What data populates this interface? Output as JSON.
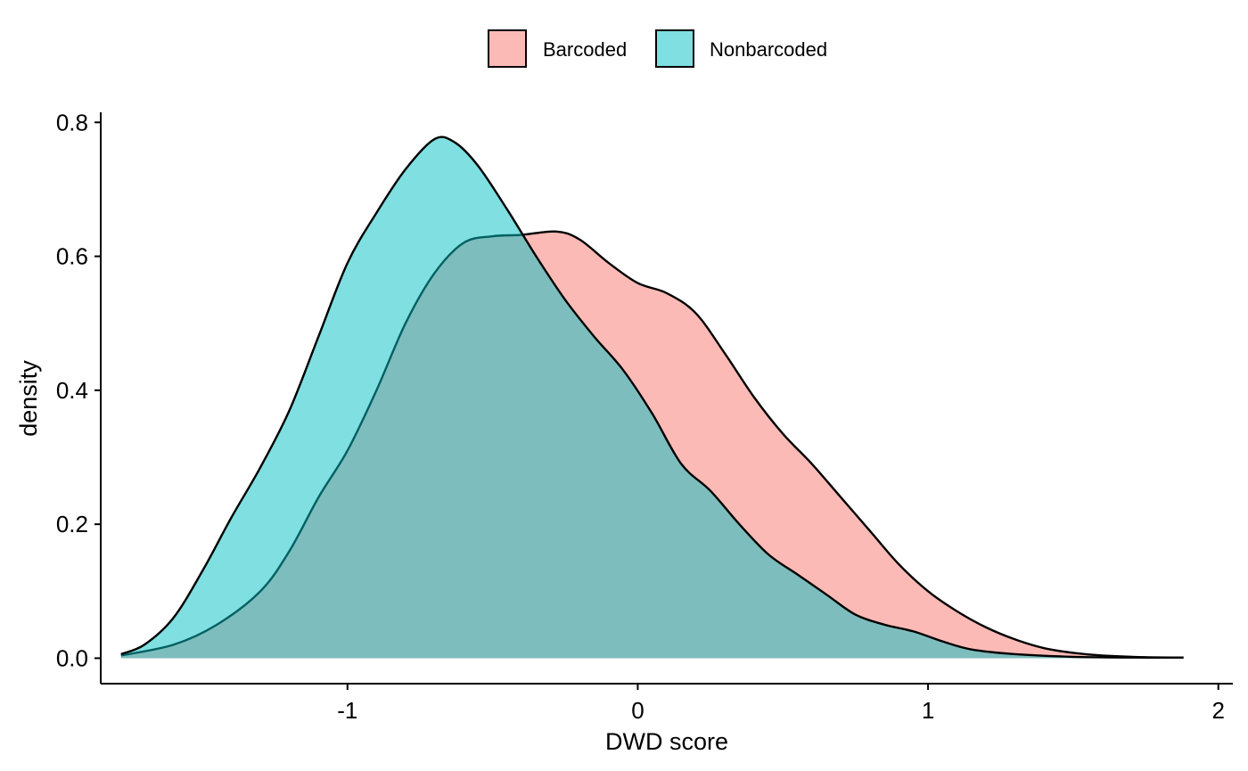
{
  "chart_data": {
    "type": "area",
    "xlabel": "DWD score",
    "ylabel": "density",
    "xlim": [
      -1.85,
      2.05
    ],
    "ylim": [
      -0.038,
      0.815
    ],
    "x_ticks": [
      -1,
      0,
      1,
      2
    ],
    "x_tick_labels": [
      "-1",
      "0",
      "1",
      "2"
    ],
    "y_ticks": [
      0.0,
      0.2,
      0.4,
      0.6,
      0.8
    ],
    "y_tick_labels": [
      "0.0",
      "0.2",
      "0.4",
      "0.6",
      "0.8"
    ],
    "grid": false,
    "legend_position": "top",
    "series": [
      {
        "name": "Barcoded",
        "color": "#F8766D",
        "points": [
          [
            -1.78,
            0.004
          ],
          [
            -1.6,
            0.02
          ],
          [
            -1.45,
            0.05
          ],
          [
            -1.3,
            0.1
          ],
          [
            -1.2,
            0.16
          ],
          [
            -1.1,
            0.24
          ],
          [
            -1.0,
            0.31
          ],
          [
            -0.9,
            0.4
          ],
          [
            -0.8,
            0.5
          ],
          [
            -0.7,
            0.575
          ],
          [
            -0.6,
            0.62
          ],
          [
            -0.5,
            0.63
          ],
          [
            -0.4,
            0.632
          ],
          [
            -0.28,
            0.637
          ],
          [
            -0.2,
            0.625
          ],
          [
            -0.1,
            0.59
          ],
          [
            0.0,
            0.56
          ],
          [
            0.1,
            0.545
          ],
          [
            0.2,
            0.515
          ],
          [
            0.3,
            0.455
          ],
          [
            0.4,
            0.39
          ],
          [
            0.5,
            0.335
          ],
          [
            0.6,
            0.29
          ],
          [
            0.7,
            0.24
          ],
          [
            0.8,
            0.19
          ],
          [
            0.9,
            0.14
          ],
          [
            1.0,
            0.1
          ],
          [
            1.1,
            0.07
          ],
          [
            1.2,
            0.046
          ],
          [
            1.3,
            0.028
          ],
          [
            1.4,
            0.015
          ],
          [
            1.5,
            0.008
          ],
          [
            1.6,
            0.004
          ],
          [
            1.75,
            0.0015
          ],
          [
            1.88,
            0.001
          ]
        ]
      },
      {
        "name": "Nonbarcoded",
        "color": "#00BFC4",
        "points": [
          [
            -1.78,
            0.006
          ],
          [
            -1.7,
            0.02
          ],
          [
            -1.6,
            0.06
          ],
          [
            -1.5,
            0.13
          ],
          [
            -1.4,
            0.21
          ],
          [
            -1.3,
            0.285
          ],
          [
            -1.2,
            0.37
          ],
          [
            -1.1,
            0.48
          ],
          [
            -1.0,
            0.59
          ],
          [
            -0.9,
            0.665
          ],
          [
            -0.8,
            0.73
          ],
          [
            -0.7,
            0.775
          ],
          [
            -0.63,
            0.77
          ],
          [
            -0.55,
            0.735
          ],
          [
            -0.45,
            0.67
          ],
          [
            -0.35,
            0.6
          ],
          [
            -0.25,
            0.535
          ],
          [
            -0.15,
            0.48
          ],
          [
            -0.05,
            0.43
          ],
          [
            0.05,
            0.365
          ],
          [
            0.15,
            0.29
          ],
          [
            0.25,
            0.25
          ],
          [
            0.35,
            0.2
          ],
          [
            0.45,
            0.155
          ],
          [
            0.55,
            0.125
          ],
          [
            0.65,
            0.095
          ],
          [
            0.75,
            0.065
          ],
          [
            0.85,
            0.05
          ],
          [
            0.95,
            0.04
          ],
          [
            1.05,
            0.025
          ],
          [
            1.15,
            0.013
          ],
          [
            1.3,
            0.006
          ],
          [
            1.5,
            0.002
          ],
          [
            1.7,
            0.001
          ],
          [
            1.88,
            0.001
          ]
        ]
      }
    ]
  },
  "legend": {
    "items": [
      {
        "label": "Barcoded",
        "color": "#F8766D"
      },
      {
        "label": "Nonbarcoded",
        "color": "#00BFC4"
      }
    ]
  }
}
